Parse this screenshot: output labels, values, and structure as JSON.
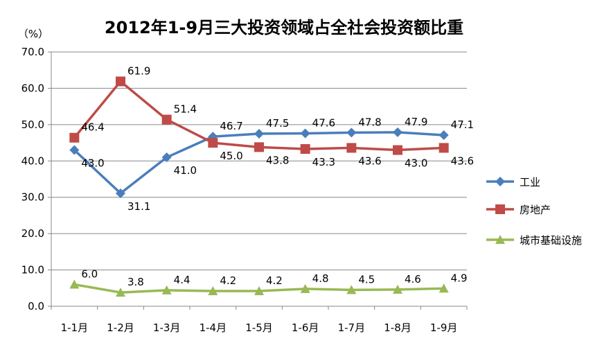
{
  "chart_data": {
    "type": "line",
    "title": "2012年1-9月三大投资领域占全社会投资额比重",
    "ylabel": "（%）",
    "xlabel": "",
    "categories": [
      "1-1月",
      "1-2月",
      "1-3月",
      "1-4月",
      "1-5月",
      "1-6月",
      "1-7月",
      "1-8月",
      "1-9月"
    ],
    "ylim": [
      0,
      70
    ],
    "yticks": [
      "0.0",
      "10.0",
      "20.0",
      "30.0",
      "40.0",
      "50.0",
      "60.0",
      "70.0"
    ],
    "grid": true,
    "legend_position": "right",
    "series": [
      {
        "name": "工业",
        "color": "#4a7ebb",
        "marker": "diamond",
        "values": [
          43.0,
          31.1,
          41.0,
          46.7,
          47.5,
          47.6,
          47.8,
          47.9,
          47.1
        ],
        "labels": [
          "43.0",
          "31.1",
          "41.0",
          "46.7",
          "47.5",
          "47.6",
          "47.8",
          "47.9",
          "47.1"
        ]
      },
      {
        "name": "房地产",
        "color": "#be4b48",
        "marker": "square",
        "values": [
          46.4,
          61.9,
          51.4,
          45.0,
          43.8,
          43.3,
          43.6,
          43.0,
          43.6
        ],
        "labels": [
          "46.4",
          "61.9",
          "51.4",
          "45.0",
          "43.8",
          "43.3",
          "43.6",
          "43.0",
          "43.6"
        ]
      },
      {
        "name": "城市基础设施",
        "color": "#98b954",
        "marker": "triangle",
        "values": [
          6.0,
          3.8,
          4.4,
          4.2,
          4.2,
          4.8,
          4.5,
          4.6,
          4.9
        ],
        "labels": [
          "6.0",
          "3.8",
          "4.4",
          "4.2",
          "4.2",
          "4.8",
          "4.5",
          "4.6",
          "4.9"
        ]
      }
    ]
  }
}
